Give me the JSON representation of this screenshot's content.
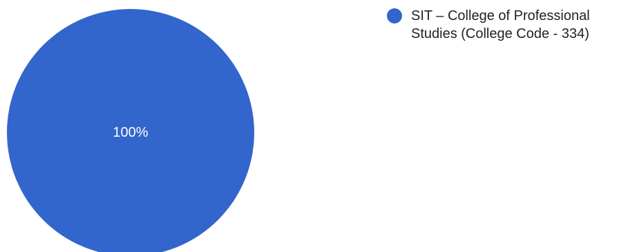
{
  "chart_data": {
    "type": "pie",
    "title": "",
    "legend_position": "right",
    "slices": [
      {
        "name": "SIT – College of Professional Studies (College Code - 334)",
        "value": 100,
        "label": "100%",
        "color": "#3366cc"
      }
    ]
  }
}
